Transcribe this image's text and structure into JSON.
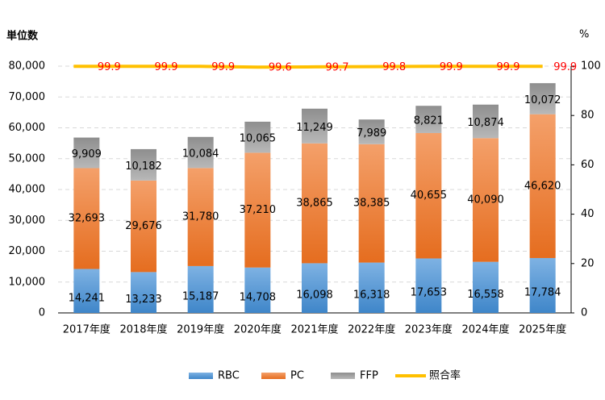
{
  "chart_data": {
    "type": "stacked-bar-line",
    "ylabel": "単位数",
    "y2label": "%",
    "categories": [
      "2017年度",
      "2018年度",
      "2019年度",
      "2020年度",
      "2021年度",
      "2022年度",
      "2023年度",
      "2024年度",
      "2025年度"
    ],
    "series": [
      {
        "name": "RBC",
        "color": "#5b9bd5",
        "type": "bar",
        "values": [
          14241,
          13233,
          15187,
          14708,
          16098,
          16318,
          17653,
          16558,
          17784
        ],
        "value_labels": [
          "14,241",
          "13,233",
          "15,187",
          "14,708",
          "16,098",
          "16,318",
          "17,653",
          "16,558",
          "17,784"
        ]
      },
      {
        "name": "PC",
        "color": "#ed7d31",
        "type": "bar",
        "values": [
          32693,
          29676,
          31780,
          37210,
          38865,
          38385,
          40655,
          40090,
          46620
        ],
        "value_labels": [
          "32,693",
          "29,676",
          "31,780",
          "37,210",
          "38,865",
          "38,385",
          "40,655",
          "40,090",
          "46,620"
        ]
      },
      {
        "name": "FFP",
        "color": "#a5a5a5",
        "type": "bar",
        "values": [
          9909,
          10182,
          10084,
          10065,
          11249,
          7989,
          8821,
          10874,
          10072
        ],
        "value_labels": [
          "9,909",
          "10,182",
          "10,084",
          "10,065",
          "11,249",
          "7,989",
          "8,821",
          "10,874",
          "10,072"
        ]
      },
      {
        "name": "照合率",
        "color": "#ffc000",
        "type": "line",
        "axis": "y2",
        "label_color": "#ff0000",
        "values": [
          99.9,
          99.9,
          99.9,
          99.6,
          99.7,
          99.8,
          99.9,
          99.9,
          99.9
        ]
      }
    ],
    "ylim": [
      0,
      80000
    ],
    "yticks": [
      0,
      {
        "value": 10000,
        "label": "10,000"
      },
      {
        "value": 20000,
        "label": "20,000"
      },
      {
        "value": 30000,
        "label": "30,000"
      },
      {
        "value": 40000,
        "label": "40,000"
      },
      {
        "value": 50000,
        "label": "50,000"
      },
      {
        "value": 60000,
        "label": "60,000"
      },
      {
        "value": 70000,
        "label": "70,000"
      },
      {
        "value": 80000,
        "label": "80,000"
      }
    ],
    "y2lim": [
      0,
      100
    ],
    "y2ticks": [
      0,
      20,
      40,
      60,
      80,
      100
    ],
    "grid": true,
    "legend": "bottom"
  }
}
